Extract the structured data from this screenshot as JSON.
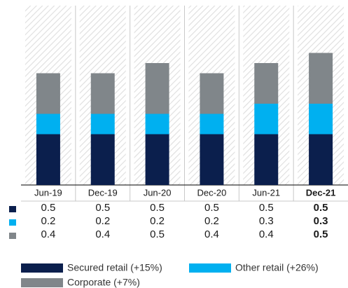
{
  "chart_data": {
    "type": "stacked_bar",
    "categories": [
      "Jun-19",
      "Dec-19",
      "Jun-20",
      "Dec-20",
      "Jun-21",
      "Dec-21"
    ],
    "series": [
      {
        "name": "Secured retail (+15%)",
        "color": "#0b1f4d",
        "values": [
          0.5,
          0.5,
          0.5,
          0.5,
          0.5,
          0.5
        ]
      },
      {
        "name": "Other retail (+26%)",
        "color": "#00b0f0",
        "values": [
          0.2,
          0.2,
          0.2,
          0.2,
          0.3,
          0.3
        ]
      },
      {
        "name": "Corporate (+7%)",
        "color": "#80868a",
        "values": [
          0.4,
          0.4,
          0.5,
          0.4,
          0.4,
          0.5
        ]
      }
    ]
  }
}
